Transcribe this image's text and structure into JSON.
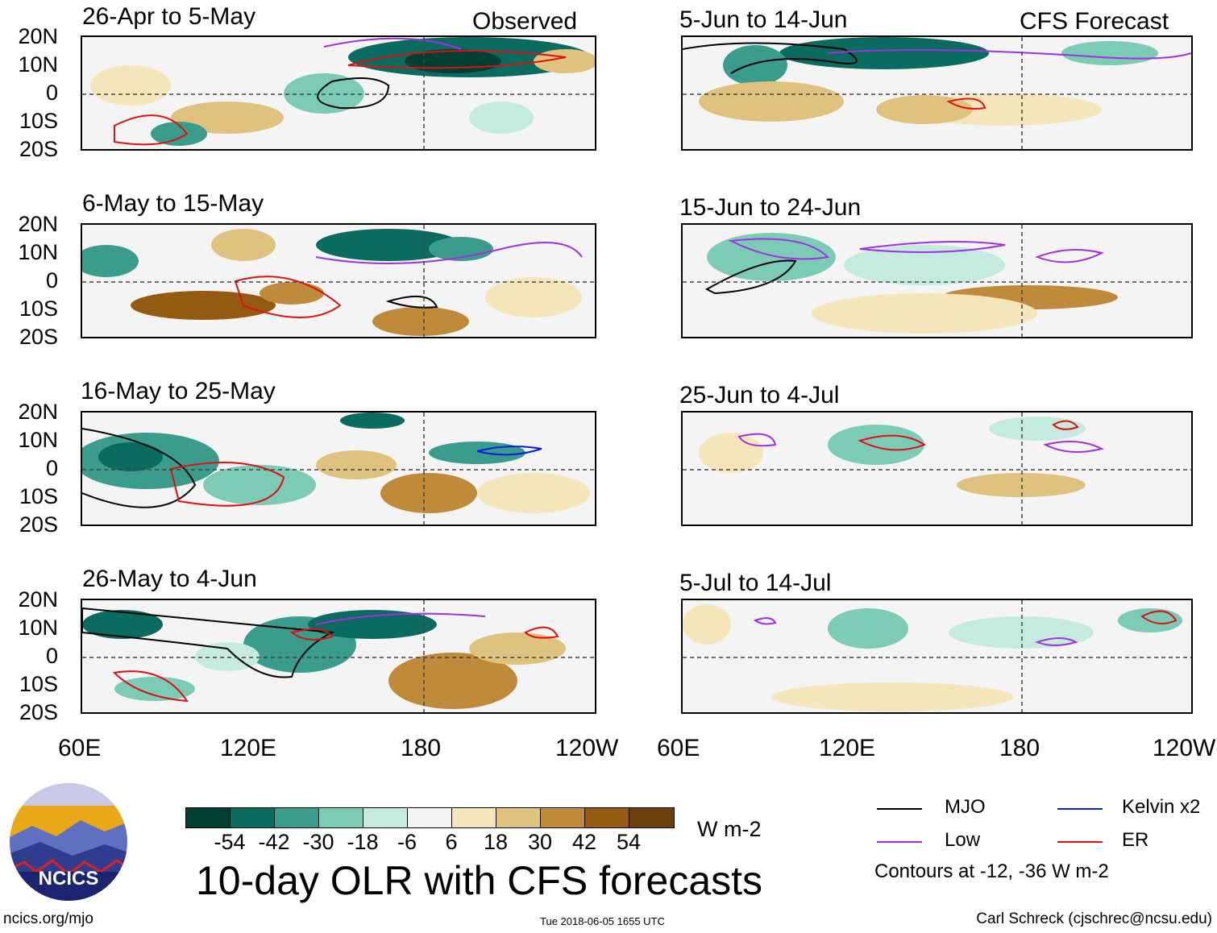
{
  "header": {
    "left_label": "Observed",
    "right_label": "CFS Forecast"
  },
  "lat_labels": [
    "20N",
    "10N",
    "0",
    "10S",
    "20S"
  ],
  "lon_labels": [
    "60E",
    "120E",
    "180",
    "120W"
  ],
  "panels_left": [
    {
      "title": "26-Apr to 5-May"
    },
    {
      "title": "6-May to 15-May"
    },
    {
      "title": "16-May to 25-May"
    },
    {
      "title": "26-May to 4-Jun"
    }
  ],
  "panels_right": [
    {
      "title": "5-Jun to 14-Jun"
    },
    {
      "title": "15-Jun to 24-Jun"
    },
    {
      "title": "25-Jun to 4-Jul"
    },
    {
      "title": "5-Jul to 14-Jul"
    }
  ],
  "colorbar": {
    "colors": [
      "#013f35",
      "#0a6b60",
      "#3a9c8d",
      "#7ccbb7",
      "#c5eadf",
      "#f5f5f5",
      "#f5e5bb",
      "#dfc27d",
      "#bf8b3a",
      "#955a12",
      "#6b400c"
    ],
    "labels": [
      "-54",
      "-42",
      "-30",
      "-18",
      "-6",
      "6",
      "18",
      "30",
      "42",
      "54"
    ],
    "units": "W m-2"
  },
  "main_title": "10-day OLR with CFS forecasts",
  "legend": {
    "items": [
      {
        "label": "MJO",
        "color": "#000000"
      },
      {
        "label": "Kelvin x2",
        "color": "#0020e0"
      },
      {
        "label": "Low",
        "color": "#a030e0"
      },
      {
        "label": "ER",
        "color": "#e01010"
      }
    ],
    "note": "Contours at -12, -36 W m-2"
  },
  "logo_text": "NCICS",
  "footer": {
    "left": "ncics.org/mjo",
    "center": "Tue 2018-06-05 1655 UTC",
    "right": "Carl Schreck (cjschrec@ncsu.edu)"
  }
}
